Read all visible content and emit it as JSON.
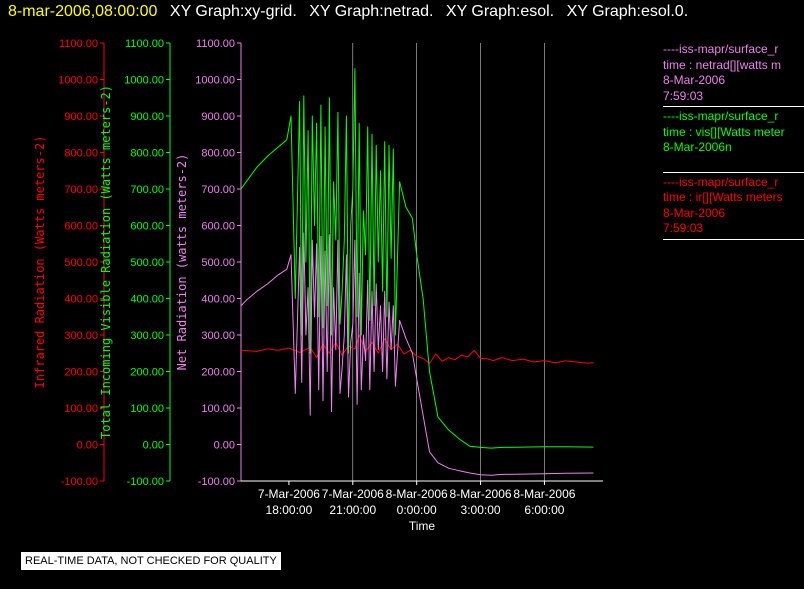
{
  "header": {
    "timestamp": "8-mar-2006,08:00:00",
    "tabs": [
      "XY Graph:xy-grid.",
      "XY Graph:netrad.",
      "XY Graph:esol.",
      "XY Graph:esol.0."
    ]
  },
  "notice": "REAL-TIME DATA, NOT CHECKED FOR QUALITY",
  "colors": {
    "background": "#000000",
    "infrared": "#ff0000",
    "visible": "#00ff00",
    "net": "#ee82ee",
    "grid": "#ffffff",
    "header_timestamp": "#ffff00"
  },
  "legend": [
    {
      "color": "#ee82ee",
      "lines": [
        "----iss-mapr/surface_r",
        "time : netrad[][watts m",
        "8-Mar-2006",
        "7:59:03"
      ]
    },
    {
      "color": "#00ff00",
      "lines": [
        "----iss-mapr/surface_r",
        "time : vis[][Watts meter",
        "8-Mar-2006n"
      ]
    },
    {
      "color": "#ff0000",
      "lines": [
        "----iss-mapr/surface_r",
        "time : ir[][Watts meters",
        "8-Mar-2006",
        "7:59:03"
      ]
    }
  ],
  "chart_data": {
    "type": "line",
    "xlabel": "Time",
    "xlim": [
      15.75,
      32.75
    ],
    "x_unit": "hours since 7-Mar-2006 00:00",
    "x_ticks": [
      {
        "x": 18,
        "line1": "7-Mar-2006",
        "line2": "18:00:00"
      },
      {
        "x": 21,
        "line1": "7-Mar-2006",
        "line2": "21:00:00"
      },
      {
        "x": 24,
        "line1": "8-Mar-2006",
        "line2": "0:00:00"
      },
      {
        "x": 27,
        "line1": "8-Mar-2006",
        "line2": "3:00:00"
      },
      {
        "x": 30,
        "line1": "8-Mar-2006",
        "line2": "6:00:00"
      }
    ],
    "vertical_grid": [
      21,
      24,
      27,
      30
    ],
    "y_axes": [
      {
        "id": "ir",
        "label": "Infrared Radiation (Watts meters-2)",
        "color": "#ff0000",
        "ylim": [
          -100,
          1100
        ],
        "ticks": [
          "1100.00",
          "1000.00",
          "900.00",
          "800.00",
          "700.00",
          "600.00",
          "500.00",
          "400.00",
          "300.00",
          "200.00",
          "100.00",
          "0.00",
          "-100.00"
        ]
      },
      {
        "id": "vis",
        "label": "Total Incoming Visible Radiation (Watts meters-2)",
        "color": "#00ff00",
        "ylim": [
          -100,
          1100
        ],
        "ticks": [
          "1100.00",
          "1000.00",
          "900.00",
          "800.00",
          "700.00",
          "600.00",
          "500.00",
          "400.00",
          "300.00",
          "200.00",
          "100.00",
          "0.00",
          "-100.00"
        ]
      },
      {
        "id": "net",
        "label": "Net Radiation (watts meters-2)",
        "color": "#ee82ee",
        "ylim": [
          -100,
          1100
        ],
        "ticks": [
          "1100.00",
          "1000.00",
          "900.00",
          "800.00",
          "700.00",
          "600.00",
          "500.00",
          "400.00",
          "300.00",
          "200.00",
          "100.00",
          "0.00",
          "-100.00"
        ]
      }
    ],
    "series": [
      {
        "color": "#ff0000",
        "x": [
          15.75,
          16.5,
          17.0,
          17.5,
          18.0,
          18.5,
          19.0,
          19.3,
          19.6,
          19.9,
          20.2,
          20.5,
          20.8,
          21.1,
          21.3,
          21.6,
          21.9,
          22.2,
          22.5,
          22.8,
          23.1,
          23.4,
          23.7,
          24.0,
          24.3,
          24.6,
          24.9,
          25.2,
          25.5,
          25.8,
          26.1,
          26.4,
          26.7,
          27.0,
          27.3,
          27.6,
          28.0,
          28.5,
          29.0,
          29.5,
          30.0,
          30.5,
          31.0,
          31.5,
          32.0,
          32.3
        ],
        "y": [
          258,
          255,
          262,
          258,
          264,
          252,
          266,
          238,
          275,
          250,
          280,
          245,
          270,
          262,
          300,
          255,
          280,
          250,
          290,
          260,
          275,
          248,
          258,
          242,
          236,
          222,
          248,
          228,
          238,
          232,
          245,
          240,
          258,
          236,
          235,
          230,
          238,
          230,
          234,
          226,
          230,
          224,
          229,
          226,
          223,
          224
        ]
      },
      {
        "color": "#00ff00",
        "x": [
          15.75,
          16.0,
          16.5,
          17.0,
          17.5,
          17.9,
          18.1,
          18.3,
          18.5,
          18.6,
          18.7,
          18.8,
          18.9,
          19.0,
          19.1,
          19.2,
          19.3,
          19.4,
          19.5,
          19.6,
          19.7,
          19.8,
          19.9,
          20.0,
          20.1,
          20.2,
          20.3,
          20.4,
          20.5,
          20.6,
          20.7,
          20.8,
          20.9,
          21.0,
          21.1,
          21.2,
          21.3,
          21.4,
          21.5,
          21.6,
          21.7,
          21.8,
          21.9,
          22.0,
          22.1,
          22.2,
          22.3,
          22.4,
          22.5,
          22.6,
          22.7,
          22.8,
          22.9,
          23.0,
          23.2,
          23.5,
          23.8,
          24.0,
          24.3,
          24.6,
          25.0,
          25.5,
          26.0,
          26.5,
          27.0,
          27.5,
          28.0,
          29.0,
          30.0,
          31.0,
          32.3
        ],
        "y": [
          700,
          720,
          760,
          790,
          815,
          835,
          900,
          400,
          940,
          300,
          955,
          500,
          860,
          250,
          900,
          600,
          880,
          350,
          930,
          320,
          870,
          380,
          950,
          300,
          720,
          560,
          910,
          330,
          420,
          560,
          900,
          250,
          600,
          700,
          1030,
          350,
          880,
          300,
          640,
          520,
          870,
          340,
          850,
          380,
          820,
          500,
          750,
          420,
          830,
          350,
          820,
          510,
          810,
          300,
          720,
          650,
          620,
          520,
          400,
          200,
          75,
          40,
          15,
          -5,
          -8,
          -10,
          -8,
          -7,
          -6,
          -6,
          -7
        ]
      },
      {
        "color": "#ee82ee",
        "x": [
          15.75,
          16.0,
          16.5,
          17.0,
          17.5,
          17.9,
          18.1,
          18.3,
          18.5,
          18.6,
          18.7,
          18.8,
          18.9,
          19.0,
          19.1,
          19.2,
          19.3,
          19.4,
          19.5,
          19.6,
          19.7,
          19.8,
          19.9,
          20.0,
          20.1,
          20.2,
          20.3,
          20.4,
          20.5,
          20.6,
          20.7,
          20.8,
          20.9,
          21.0,
          21.1,
          21.2,
          21.3,
          21.4,
          21.5,
          21.6,
          21.7,
          21.8,
          21.9,
          22.0,
          22.1,
          22.2,
          22.3,
          22.4,
          22.5,
          22.6,
          22.7,
          22.8,
          22.9,
          23.0,
          23.2,
          23.5,
          23.8,
          24.0,
          24.3,
          24.6,
          25.0,
          25.5,
          26.0,
          26.5,
          27.0,
          27.5,
          28.0,
          29.0,
          30.0,
          31.0,
          32.3
        ],
        "y": [
          380,
          395,
          420,
          440,
          465,
          480,
          520,
          140,
          540,
          170,
          580,
          300,
          430,
          80,
          560,
          350,
          550,
          150,
          570,
          120,
          530,
          200,
          575,
          90,
          430,
          260,
          560,
          140,
          210,
          300,
          520,
          130,
          280,
          330,
          560,
          110,
          470,
          150,
          300,
          230,
          450,
          150,
          420,
          200,
          440,
          260,
          380,
          200,
          420,
          180,
          390,
          260,
          380,
          160,
          340,
          290,
          250,
          180,
          80,
          -20,
          -50,
          -65,
          -72,
          -78,
          -83,
          -84,
          -82,
          -81,
          -80,
          -79,
          -78
        ]
      }
    ]
  }
}
